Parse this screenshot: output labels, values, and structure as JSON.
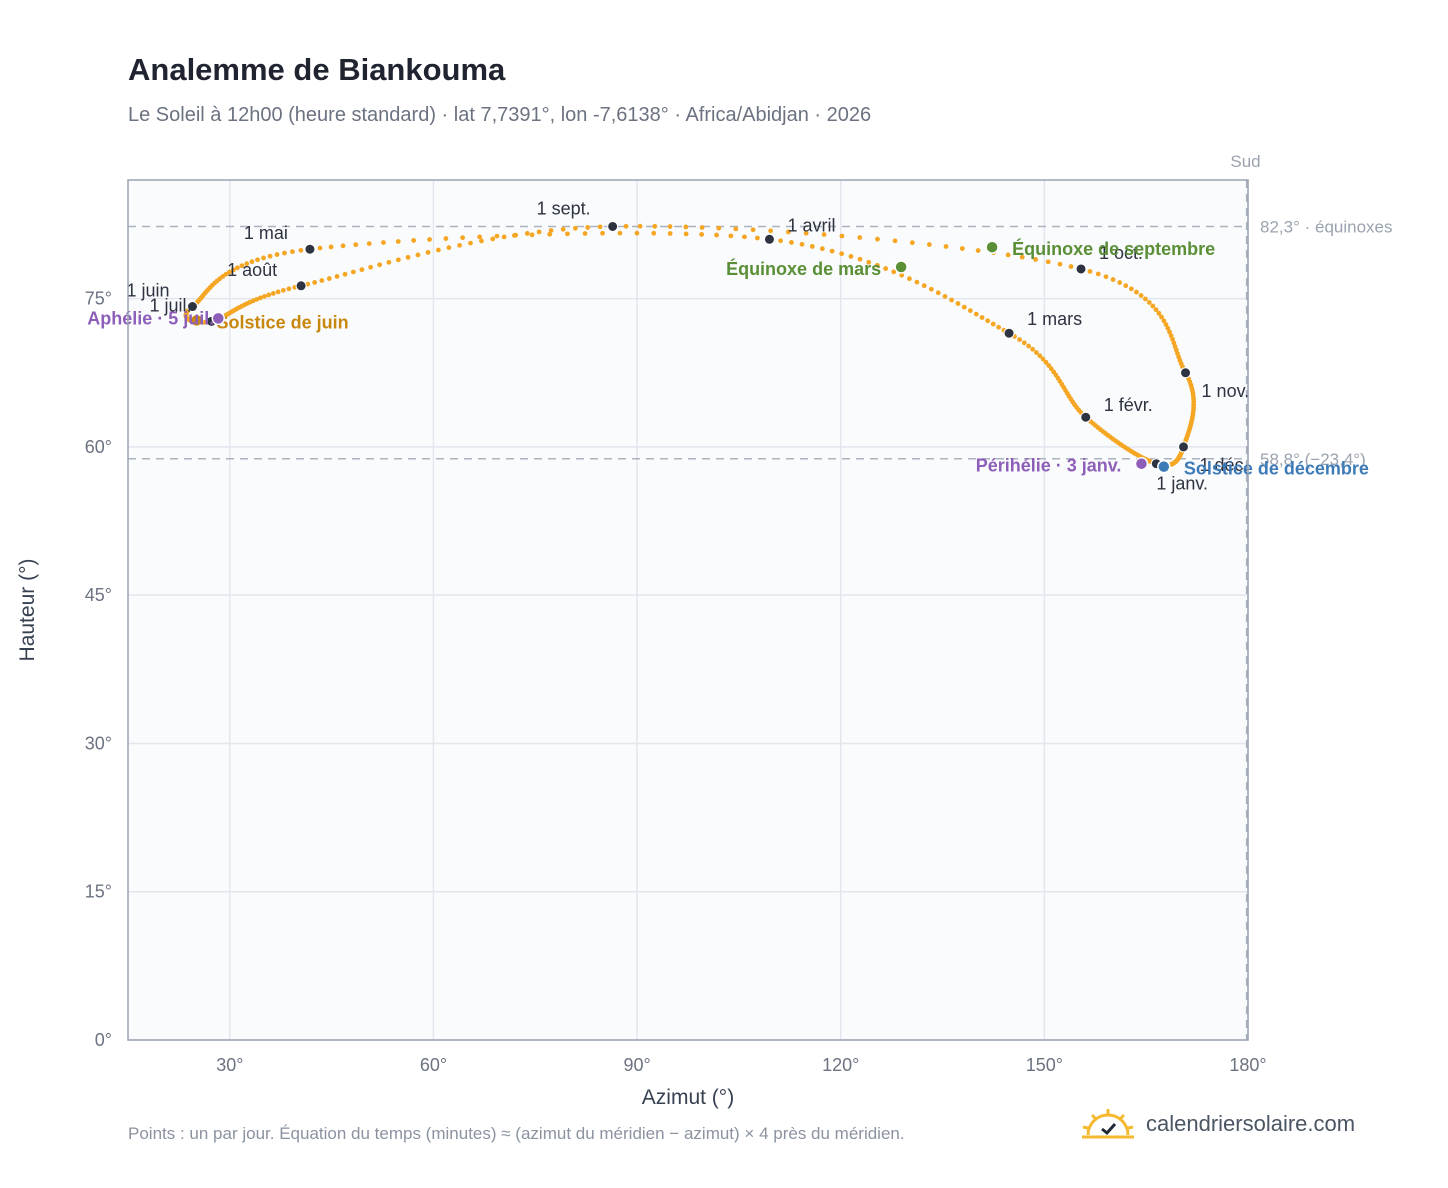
{
  "title": "Analemme de Biankouma",
  "subtitle": "Le Soleil à 12h00 (heure standard) · lat 7,7391°, lon -7,6138° · Africa/Abidjan · 2026",
  "footnote": "Points : un par jour. Équation du temps (minutes) ≈ (azimut du méridien − azimut) × 4 près du méridien.",
  "brand": {
    "name": "calendriersolaire.com",
    "icon": "sun-check-logo-icon"
  },
  "colors": {
    "curve": "#f5a623",
    "month_point": "#2d3340",
    "equinox": "#5a8f36",
    "solstice_june": "#c8870f",
    "solstice_december": "#3d7ab8",
    "apsis": "#8e5fb8",
    "plot_bg": "#f9fbfd",
    "grid": "#e2e7ee",
    "axis": "#9aa3af",
    "reference": "#aab3bf"
  },
  "chart_data": {
    "type": "scatter",
    "xlabel": "Azimut (°)",
    "ylabel": "Hauteur (°)",
    "xlim": [
      15,
      180
    ],
    "ylim": [
      0,
      87
    ],
    "x_ticks": [
      {
        "value": 30,
        "label": "30°"
      },
      {
        "value": 60,
        "label": "60°"
      },
      {
        "value": 90,
        "label": "90°"
      },
      {
        "value": 120,
        "label": "120°"
      },
      {
        "value": 150,
        "label": "150°"
      },
      {
        "value": 180,
        "label": "180°"
      }
    ],
    "y_ticks": [
      {
        "value": 0,
        "label": "0°"
      },
      {
        "value": 15,
        "label": "15°"
      },
      {
        "value": 30,
        "label": "30°"
      },
      {
        "value": 45,
        "label": "45°"
      },
      {
        "value": 60,
        "label": "60°"
      },
      {
        "value": 75,
        "label": "75°"
      }
    ],
    "grid": true,
    "south_marker": {
      "azimuth": 179.8,
      "label": "Sud"
    },
    "reference_lines": [
      {
        "altitude": 82.3,
        "label": "82,3° · équinoxes"
      },
      {
        "altitude": 58.8,
        "label": "58,8° (−23,4°)"
      }
    ],
    "month_points": [
      {
        "label": "1 janv.",
        "az": 166.5,
        "alt": 58.3
      },
      {
        "label": "1 févr.",
        "az": 156.1,
        "alt": 63.0
      },
      {
        "label": "1 mars",
        "az": 144.8,
        "alt": 71.5
      },
      {
        "label": "1 avril",
        "az": 109.5,
        "alt": 81.0
      },
      {
        "label": "1 mai",
        "az": 41.8,
        "alt": 80.0
      },
      {
        "label": "1 juin",
        "az": 24.5,
        "alt": 74.2
      },
      {
        "label": "1 juil.",
        "az": 27.3,
        "alt": 72.7
      },
      {
        "label": "1 août",
        "az": 40.5,
        "alt": 76.3
      },
      {
        "label": "1 sept.",
        "az": 86.4,
        "alt": 82.3
      },
      {
        "label": "1 oct.",
        "az": 155.4,
        "alt": 78.0
      },
      {
        "label": "1 nov.",
        "az": 170.8,
        "alt": 67.5
      },
      {
        "label": "1 déc.",
        "az": 170.5,
        "alt": 60.0
      }
    ],
    "events": [
      {
        "label": "Équinoxe de mars",
        "az": 128.9,
        "alt": 78.2,
        "color": "#5a8f36"
      },
      {
        "label": "Équinoxe de septembre",
        "az": 142.3,
        "alt": 80.2,
        "color": "#5a8f36"
      },
      {
        "label": "Solstice de juin",
        "az": 25.1,
        "alt": 72.8,
        "color": "#c8870f"
      },
      {
        "label": "Solstice de décembre",
        "az": 167.6,
        "alt": 58.0,
        "color": "#3d7ab8"
      },
      {
        "label": "Aphélie · 5 juil.",
        "az": 28.3,
        "alt": 73.0,
        "color": "#8e5fb8"
      },
      {
        "label": "Périhélie · 3 janv.",
        "az": 164.3,
        "alt": 58.3,
        "color": "#8e5fb8"
      }
    ]
  }
}
